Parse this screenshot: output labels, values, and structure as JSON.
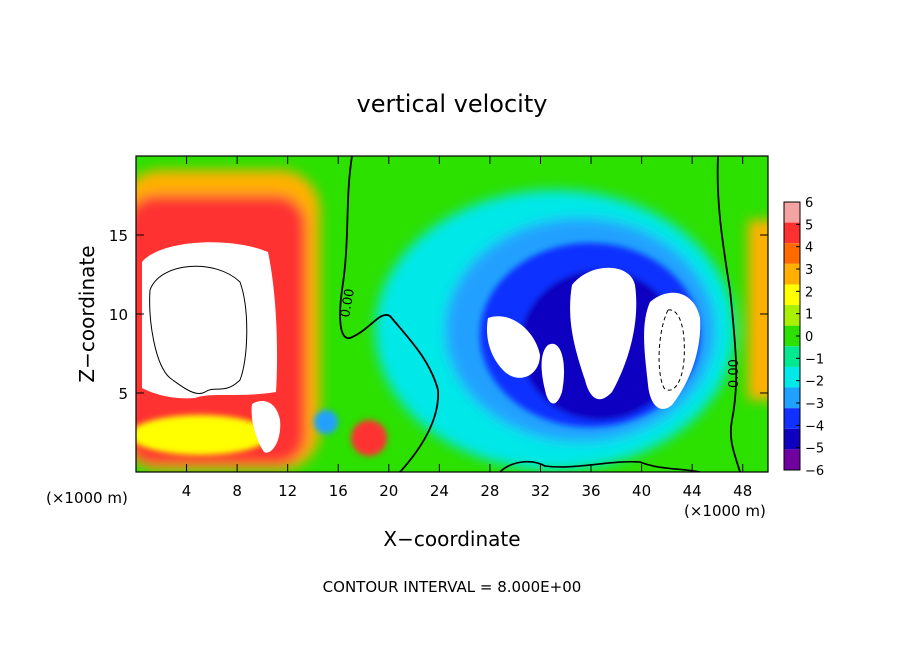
{
  "chart_data": {
    "type": "heatmap",
    "title": "vertical velocity",
    "xlabel": "X−coordinate",
    "ylabel": "Z−coordinate",
    "x_unit_left": "(×1000 m)",
    "x_unit_right": "(×1000 m)",
    "xlim": [
      0,
      50
    ],
    "ylim": [
      0,
      20
    ],
    "x_ticks": [
      "4",
      "8",
      "12",
      "16",
      "20",
      "24",
      "28",
      "32",
      "36",
      "40",
      "44",
      "48"
    ],
    "x_tick_values": [
      4,
      8,
      12,
      16,
      20,
      24,
      28,
      32,
      36,
      40,
      44,
      48
    ],
    "y_ticks": [
      "5",
      "10",
      "15"
    ],
    "y_tick_values": [
      5,
      10,
      15
    ],
    "colorbar": {
      "labels": [
        "6",
        "5",
        "4",
        "3",
        "2",
        "1",
        "0",
        "−1",
        "−2",
        "−3",
        "−4",
        "−5",
        "−6"
      ],
      "values": [
        6,
        5,
        4,
        3,
        2,
        1,
        0,
        -1,
        -2,
        -3,
        -4,
        -5,
        -6
      ],
      "colors": [
        "#f4a3a3",
        "#ff3030",
        "#ff6a00",
        "#ffb000",
        "#ffff00",
        "#a8f000",
        "#2ce000",
        "#00e890",
        "#00e8e8",
        "#20a0ff",
        "#1030ff",
        "#1000c0",
        "#7000a0"
      ]
    },
    "contour_labels": [
      "0.00",
      "0.00"
    ],
    "contour_interval_text": "CONTOUR INTERVAL = 8.000E+00"
  }
}
